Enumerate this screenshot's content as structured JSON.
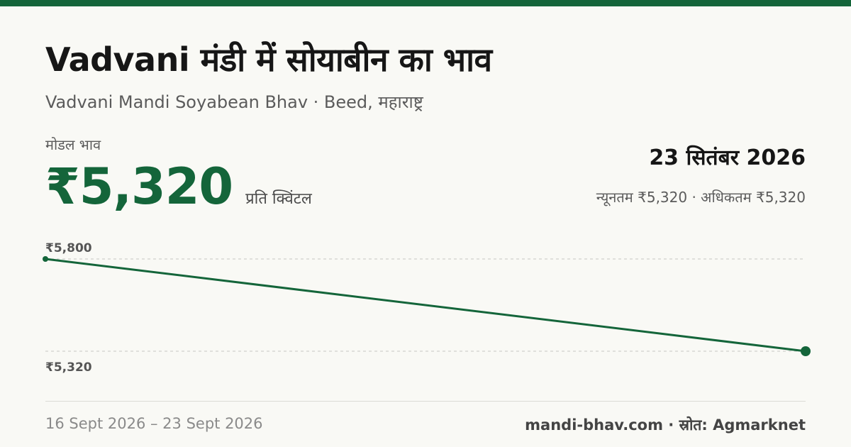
{
  "header": {
    "title": "Vadvani मंडी में सोयाबीन का भाव",
    "subtitle": "Vadvani Mandi Soyabean Bhav · Beed, महाराष्ट्र"
  },
  "price": {
    "label": "मोडल भाव",
    "value": "₹5,320",
    "unit": "प्रति क्विंटल"
  },
  "summary": {
    "date": "23 सितंबर 2026",
    "minmax": "न्यूनतम ₹5,320 · अधिकतम ₹5,320"
  },
  "chart_data": {
    "type": "line",
    "x": [
      "16 Sept 2026",
      "23 Sept 2026"
    ],
    "series": [
      {
        "values": [
          5800,
          5320
        ]
      }
    ],
    "y_tick_labels": [
      "₹5,800",
      "₹5,320"
    ],
    "y_ticks": [
      5800,
      5320
    ],
    "ylim": [
      5320,
      5800
    ],
    "grid": true,
    "line_color": "#14653a",
    "grid_color": "#c8c8c2"
  },
  "footer": {
    "range": "16 Sept 2026 – 23 Sept 2026",
    "source": "mandi-bhav.com · स्रोत: Agmarknet"
  },
  "colors": {
    "accent": "#14653a",
    "background": "#f9f9f5"
  }
}
